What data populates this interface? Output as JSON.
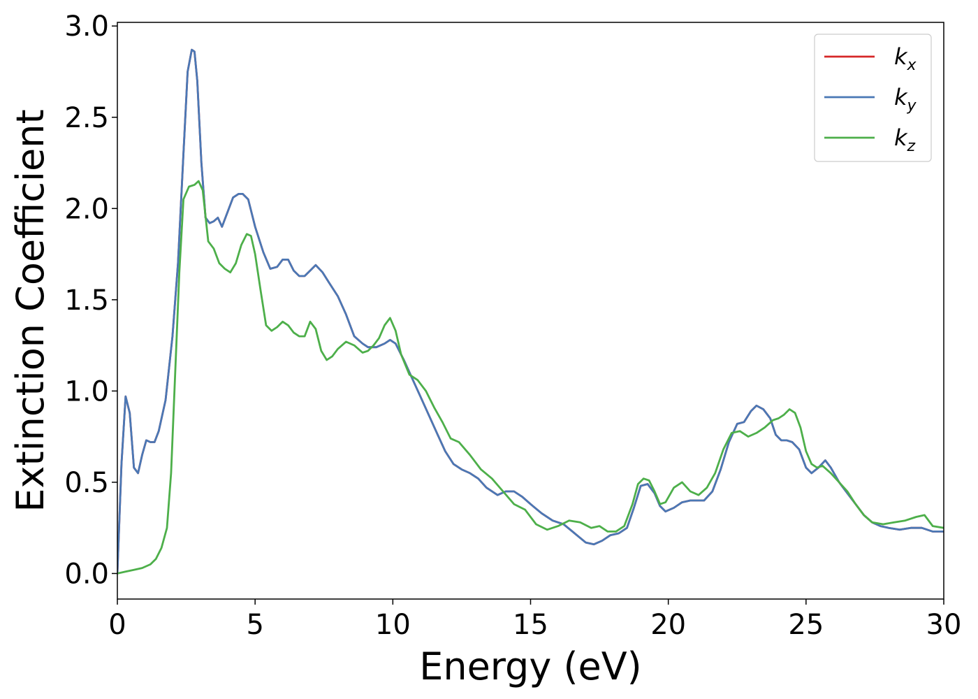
{
  "chart_data": {
    "type": "line",
    "title": "",
    "xlabel": "Energy (eV)",
    "ylabel": "Extinction Coefficient",
    "xlim": [
      0,
      30
    ],
    "ylim": [
      -0.14,
      3.02
    ],
    "xticks": [
      0,
      5,
      10,
      15,
      20,
      25,
      30
    ],
    "xtick_labels": [
      "0",
      "5",
      "10",
      "15",
      "20",
      "25",
      "30"
    ],
    "yticks": [
      0.0,
      0.5,
      1.0,
      1.5,
      2.0,
      2.5,
      3.0
    ],
    "ytick_labels": [
      "0.0",
      "0.5",
      "1.0",
      "1.5",
      "2.0",
      "2.5",
      "3.0"
    ],
    "grid": false,
    "legend_position": "top-right",
    "series": [
      {
        "name": "k",
        "subscript": "x",
        "color": "#d62728",
        "x": [
          0,
          0.15,
          0.3,
          0.45,
          0.6,
          0.75,
          0.9,
          1.05,
          1.2,
          1.35,
          1.5,
          1.75,
          2.0,
          2.2,
          2.4,
          2.55,
          2.7,
          2.8,
          2.9,
          3.05,
          3.2,
          3.35,
          3.5,
          3.65,
          3.8,
          4.0,
          4.2,
          4.4,
          4.55,
          4.75,
          5.0,
          5.3,
          5.55,
          5.8,
          6.0,
          6.2,
          6.4,
          6.6,
          6.8,
          7.0,
          7.2,
          7.45,
          7.7,
          8.0,
          8.3,
          8.6,
          8.9,
          9.1,
          9.4,
          9.7,
          9.9,
          10.1,
          10.4,
          10.7,
          11.0,
          11.3,
          11.6,
          11.9,
          12.2,
          12.5,
          12.8,
          13.1,
          13.4,
          13.8,
          14.1,
          14.4,
          14.7,
          15.0,
          15.4,
          15.8,
          16.2,
          16.6,
          17.0,
          17.3,
          17.6,
          17.9,
          18.2,
          18.5,
          18.75,
          19.0,
          19.25,
          19.5,
          19.7,
          19.9,
          20.2,
          20.5,
          20.8,
          21.0,
          21.3,
          21.6,
          21.9,
          22.2,
          22.5,
          22.75,
          23.0,
          23.2,
          23.45,
          23.7,
          23.9,
          24.1,
          24.3,
          24.5,
          24.75,
          25.0,
          25.2,
          25.45,
          25.7,
          25.9,
          26.2,
          26.5,
          26.8,
          27.1,
          27.4,
          27.7,
          28.0,
          28.4,
          28.8,
          29.2,
          29.6,
          30.0
        ],
        "values": [
          0.0,
          0.6,
          0.97,
          0.88,
          0.58,
          0.55,
          0.65,
          0.73,
          0.72,
          0.72,
          0.78,
          0.95,
          1.3,
          1.7,
          2.3,
          2.75,
          2.87,
          2.86,
          2.7,
          2.25,
          1.95,
          1.92,
          1.93,
          1.95,
          1.9,
          1.98,
          2.06,
          2.08,
          2.08,
          2.05,
          1.9,
          1.76,
          1.67,
          1.68,
          1.72,
          1.72,
          1.66,
          1.63,
          1.63,
          1.66,
          1.69,
          1.65,
          1.59,
          1.52,
          1.42,
          1.3,
          1.26,
          1.24,
          1.24,
          1.26,
          1.28,
          1.26,
          1.17,
          1.07,
          0.97,
          0.87,
          0.77,
          0.67,
          0.6,
          0.57,
          0.55,
          0.52,
          0.47,
          0.43,
          0.45,
          0.45,
          0.42,
          0.38,
          0.33,
          0.29,
          0.27,
          0.22,
          0.17,
          0.16,
          0.18,
          0.21,
          0.22,
          0.25,
          0.36,
          0.48,
          0.49,
          0.44,
          0.37,
          0.34,
          0.36,
          0.39,
          0.4,
          0.4,
          0.4,
          0.45,
          0.57,
          0.72,
          0.82,
          0.83,
          0.89,
          0.92,
          0.9,
          0.85,
          0.76,
          0.73,
          0.73,
          0.72,
          0.68,
          0.58,
          0.55,
          0.58,
          0.62,
          0.58,
          0.5,
          0.44,
          0.38,
          0.32,
          0.28,
          0.26,
          0.25,
          0.24,
          0.25,
          0.25,
          0.23,
          0.23
        ]
      },
      {
        "name": "k",
        "subscript": "y",
        "color": "#4a78b5",
        "x": [
          0,
          0.15,
          0.3,
          0.45,
          0.6,
          0.75,
          0.9,
          1.05,
          1.2,
          1.35,
          1.5,
          1.75,
          2.0,
          2.2,
          2.4,
          2.55,
          2.7,
          2.8,
          2.9,
          3.05,
          3.2,
          3.35,
          3.5,
          3.65,
          3.8,
          4.0,
          4.2,
          4.4,
          4.55,
          4.75,
          5.0,
          5.3,
          5.55,
          5.8,
          6.0,
          6.2,
          6.4,
          6.6,
          6.8,
          7.0,
          7.2,
          7.45,
          7.7,
          8.0,
          8.3,
          8.6,
          8.9,
          9.1,
          9.4,
          9.7,
          9.9,
          10.1,
          10.4,
          10.7,
          11.0,
          11.3,
          11.6,
          11.9,
          12.2,
          12.5,
          12.8,
          13.1,
          13.4,
          13.8,
          14.1,
          14.4,
          14.7,
          15.0,
          15.4,
          15.8,
          16.2,
          16.6,
          17.0,
          17.3,
          17.6,
          17.9,
          18.2,
          18.5,
          18.75,
          19.0,
          19.25,
          19.5,
          19.7,
          19.9,
          20.2,
          20.5,
          20.8,
          21.0,
          21.3,
          21.6,
          21.9,
          22.2,
          22.5,
          22.75,
          23.0,
          23.2,
          23.45,
          23.7,
          23.9,
          24.1,
          24.3,
          24.5,
          24.75,
          25.0,
          25.2,
          25.45,
          25.7,
          25.9,
          26.2,
          26.5,
          26.8,
          27.1,
          27.4,
          27.7,
          28.0,
          28.4,
          28.8,
          29.2,
          29.6,
          30.0
        ],
        "values": [
          0.0,
          0.6,
          0.97,
          0.88,
          0.58,
          0.55,
          0.65,
          0.73,
          0.72,
          0.72,
          0.78,
          0.95,
          1.3,
          1.7,
          2.3,
          2.75,
          2.87,
          2.86,
          2.7,
          2.25,
          1.95,
          1.92,
          1.93,
          1.95,
          1.9,
          1.98,
          2.06,
          2.08,
          2.08,
          2.05,
          1.9,
          1.76,
          1.67,
          1.68,
          1.72,
          1.72,
          1.66,
          1.63,
          1.63,
          1.66,
          1.69,
          1.65,
          1.59,
          1.52,
          1.42,
          1.3,
          1.26,
          1.24,
          1.24,
          1.26,
          1.28,
          1.26,
          1.17,
          1.07,
          0.97,
          0.87,
          0.77,
          0.67,
          0.6,
          0.57,
          0.55,
          0.52,
          0.47,
          0.43,
          0.45,
          0.45,
          0.42,
          0.38,
          0.33,
          0.29,
          0.27,
          0.22,
          0.17,
          0.16,
          0.18,
          0.21,
          0.22,
          0.25,
          0.36,
          0.48,
          0.49,
          0.44,
          0.37,
          0.34,
          0.36,
          0.39,
          0.4,
          0.4,
          0.4,
          0.45,
          0.57,
          0.72,
          0.82,
          0.83,
          0.89,
          0.92,
          0.9,
          0.85,
          0.76,
          0.73,
          0.73,
          0.72,
          0.68,
          0.58,
          0.55,
          0.58,
          0.62,
          0.58,
          0.5,
          0.44,
          0.38,
          0.32,
          0.28,
          0.26,
          0.25,
          0.24,
          0.25,
          0.25,
          0.23,
          0.23
        ]
      },
      {
        "name": "k",
        "subscript": "z",
        "color": "#4daf4a",
        "x": [
          0,
          0.3,
          0.6,
          0.9,
          1.2,
          1.4,
          1.6,
          1.8,
          1.95,
          2.1,
          2.25,
          2.4,
          2.6,
          2.8,
          2.95,
          3.1,
          3.3,
          3.5,
          3.7,
          3.9,
          4.1,
          4.3,
          4.5,
          4.7,
          4.85,
          5.0,
          5.2,
          5.4,
          5.6,
          5.8,
          6.0,
          6.2,
          6.4,
          6.6,
          6.8,
          7.0,
          7.2,
          7.4,
          7.6,
          7.8,
          8.0,
          8.3,
          8.6,
          8.9,
          9.1,
          9.3,
          9.5,
          9.7,
          9.9,
          10.1,
          10.3,
          10.6,
          10.9,
          11.2,
          11.5,
          11.8,
          12.1,
          12.4,
          12.8,
          13.2,
          13.6,
          14.0,
          14.4,
          14.8,
          15.2,
          15.6,
          16.0,
          16.4,
          16.8,
          17.2,
          17.5,
          17.8,
          18.1,
          18.4,
          18.7,
          18.9,
          19.1,
          19.3,
          19.5,
          19.7,
          19.9,
          20.2,
          20.5,
          20.8,
          21.1,
          21.4,
          21.7,
          22.0,
          22.3,
          22.6,
          22.9,
          23.2,
          23.5,
          23.8,
          24.0,
          24.2,
          24.4,
          24.6,
          24.8,
          25.0,
          25.2,
          25.4,
          25.6,
          25.9,
          26.2,
          26.5,
          26.8,
          27.1,
          27.4,
          27.8,
          28.2,
          28.6,
          29.0,
          29.3,
          29.6,
          30.0
        ],
        "values": [
          0.0,
          0.01,
          0.02,
          0.03,
          0.05,
          0.08,
          0.14,
          0.25,
          0.55,
          1.1,
          1.65,
          2.05,
          2.12,
          2.13,
          2.15,
          2.1,
          1.82,
          1.78,
          1.7,
          1.67,
          1.65,
          1.7,
          1.8,
          1.86,
          1.85,
          1.75,
          1.55,
          1.36,
          1.33,
          1.35,
          1.38,
          1.36,
          1.32,
          1.3,
          1.3,
          1.38,
          1.34,
          1.22,
          1.17,
          1.19,
          1.23,
          1.27,
          1.25,
          1.21,
          1.22,
          1.25,
          1.29,
          1.36,
          1.4,
          1.33,
          1.2,
          1.09,
          1.06,
          1.0,
          0.91,
          0.83,
          0.74,
          0.72,
          0.65,
          0.57,
          0.52,
          0.45,
          0.38,
          0.35,
          0.27,
          0.24,
          0.26,
          0.29,
          0.28,
          0.25,
          0.26,
          0.23,
          0.23,
          0.26,
          0.38,
          0.49,
          0.52,
          0.51,
          0.45,
          0.38,
          0.39,
          0.47,
          0.5,
          0.45,
          0.43,
          0.47,
          0.55,
          0.68,
          0.77,
          0.78,
          0.75,
          0.77,
          0.8,
          0.84,
          0.85,
          0.87,
          0.9,
          0.88,
          0.8,
          0.67,
          0.6,
          0.58,
          0.59,
          0.55,
          0.5,
          0.45,
          0.38,
          0.32,
          0.28,
          0.27,
          0.28,
          0.29,
          0.31,
          0.32,
          0.26,
          0.25
        ]
      }
    ]
  }
}
